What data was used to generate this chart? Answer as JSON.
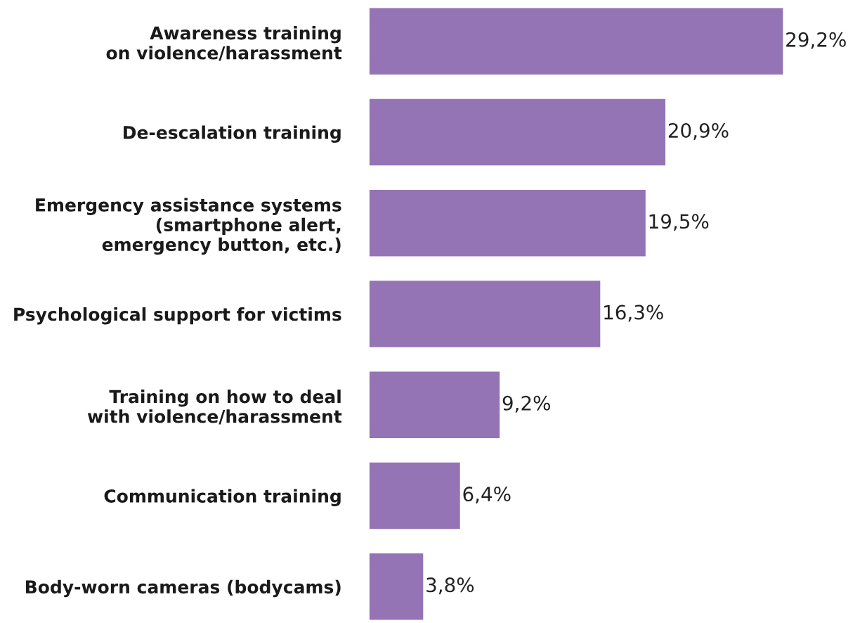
{
  "chart_data": {
    "type": "bar",
    "orientation": "horizontal",
    "categories": [
      "Awareness training\non violence/harassment",
      "De-escalation training",
      "Emergency assistance systems\n(smartphone alert,\nemergency button, etc.)",
      "Psychological support for victims",
      "Training on how to deal\nwith violence/harassment",
      "Communication training",
      "Body-worn cameras (bodycams)"
    ],
    "values": [
      29.2,
      20.9,
      19.5,
      16.3,
      9.2,
      6.4,
      3.8
    ],
    "value_labels": [
      "29,2%",
      "20,9%",
      "19,5%",
      "16,3%",
      "9,2%",
      "6,4%",
      "3,8%"
    ],
    "color": "#9474b4",
    "grid": false,
    "legend": false
  }
}
